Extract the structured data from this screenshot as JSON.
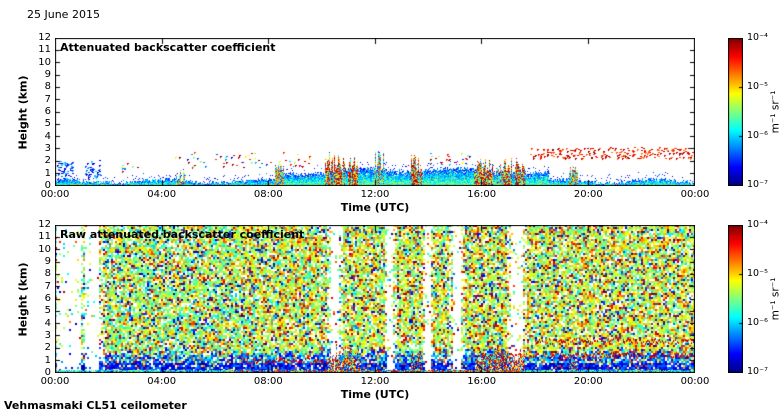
{
  "page": {
    "date_label": "25 June 2015",
    "footer_label": "Vehmasmaki CL51 ceilometer"
  },
  "chart_data": [
    {
      "type": "heatmap",
      "title": "Attenuated backscatter coefficient",
      "xlabel": "Time (UTC)",
      "ylabel": "Height (km)",
      "x_ticks": [
        "00:00",
        "04:00",
        "08:00",
        "12:00",
        "16:00",
        "20:00",
        "00:00"
      ],
      "y_ticks": [
        "0",
        "1",
        "2",
        "3",
        "4",
        "5",
        "6",
        "7",
        "8",
        "9",
        "10",
        "11",
        "12"
      ],
      "x_range_hours": [
        0,
        24
      ],
      "y_range_km": [
        0,
        12
      ],
      "background": "#ffffff",
      "colorbar": {
        "label": "m⁻¹ sr⁻¹",
        "ticks": [
          "10⁻⁴",
          "10⁻⁵",
          "10⁻⁶",
          "10⁻⁷"
        ],
        "scale": "log",
        "min": 1e-07,
        "max": 0.0001,
        "colormap": "jet"
      },
      "features": {
        "boundary_layer": {
          "description": "shallow surface aerosol layer",
          "top_km_night": 0.4,
          "top_km_day": 1.3
        },
        "plumes": [
          {
            "start_h": 4.55,
            "end_h": 4.85,
            "top_km": 1.5,
            "intensity": "moderate"
          },
          {
            "start_h": 8.25,
            "end_h": 8.55,
            "top_km": 2.0,
            "intensity": "moderate"
          },
          {
            "start_h": 10.15,
            "end_h": 10.85,
            "top_km": 2.9,
            "intensity": "strong"
          },
          {
            "start_h": 11.0,
            "end_h": 11.35,
            "top_km": 2.4,
            "intensity": "strong"
          },
          {
            "start_h": 12.0,
            "end_h": 12.3,
            "top_km": 3.4,
            "intensity": "moderate"
          },
          {
            "start_h": 13.35,
            "end_h": 13.75,
            "top_km": 2.6,
            "intensity": "strong"
          },
          {
            "start_h": 15.7,
            "end_h": 16.4,
            "top_km": 2.3,
            "intensity": "strong"
          },
          {
            "start_h": 16.6,
            "end_h": 17.6,
            "top_km": 2.4,
            "intensity": "strong"
          },
          {
            "start_h": 19.3,
            "end_h": 19.6,
            "top_km": 1.9,
            "intensity": "moderate"
          }
        ],
        "scattered_layers": [
          {
            "start_h": 0.1,
            "end_h": 0.7,
            "km": [
              0.3,
              2.0
            ],
            "density": 0.7,
            "palette": "cool"
          },
          {
            "start_h": 1.15,
            "end_h": 1.7,
            "km": [
              0.6,
              2.1
            ],
            "density": 0.6,
            "palette": "cool"
          },
          {
            "start_h": 2.3,
            "end_h": 3.2,
            "km": [
              1.2,
              2.0
            ],
            "density": 0.15,
            "palette": "mixed"
          },
          {
            "start_h": 4.5,
            "end_h": 9.6,
            "km": [
              1.5,
              2.7
            ],
            "density": 0.12,
            "palette": "mixed"
          },
          {
            "start_h": 14.0,
            "end_h": 15.6,
            "km": [
              1.7,
              2.6
            ],
            "density": 0.2,
            "palette": "mixed"
          },
          {
            "start_h": 17.8,
            "end_h": 23.9,
            "km": [
              2.2,
              3.1
            ],
            "density": 0.5,
            "palette": "warm"
          }
        ]
      }
    },
    {
      "type": "heatmap",
      "title": "Raw attenuated backscatter coefficient",
      "xlabel": "Time (UTC)",
      "ylabel": "Height (km)",
      "x_ticks": [
        "00:00",
        "04:00",
        "08:00",
        "12:00",
        "16:00",
        "20:00",
        "00:00"
      ],
      "y_ticks": [
        "0",
        "1",
        "2",
        "3",
        "4",
        "5",
        "6",
        "7",
        "8",
        "9",
        "10",
        "11",
        "12"
      ],
      "x_range_hours": [
        0,
        24
      ],
      "y_range_km": [
        0,
        12
      ],
      "background": "#ffffff",
      "colorbar": {
        "label": "m⁻¹ sr⁻¹",
        "ticks": [
          "10⁻⁴",
          "10⁻⁵",
          "10⁻⁶",
          "10⁻⁷"
        ],
        "scale": "log",
        "min": 1e-07,
        "max": 0.0001,
        "colormap": "jet"
      },
      "features": {
        "noise": {
          "description": "speckled green-yellow instrument noise over full profile",
          "white_fraction": 0.16
        },
        "surface_zone_top_km": 2.0,
        "white_columns": [
          {
            "h": 0.45,
            "w": 0.9
          },
          {
            "h": 1.35,
            "w": 0.5
          },
          {
            "h": 10.45,
            "w": 0.3
          },
          {
            "h": 12.55,
            "w": 0.2
          },
          {
            "h": 13.95,
            "w": 0.18
          },
          {
            "h": 15.05,
            "w": 0.28
          },
          {
            "h": 17.3,
            "w": 0.4
          }
        ],
        "aerosol_lines": [
          {
            "start_h": 7.0,
            "end_h": 10.4,
            "km": 1.0
          },
          {
            "start_h": 16.0,
            "end_h": 23.9,
            "km": 1.45
          },
          {
            "start_h": 18.0,
            "end_h": 23.9,
            "km": 2.6
          }
        ],
        "strong_returns": [
          {
            "start_h": 10.2,
            "end_h": 11.4,
            "top_km": 2.4
          },
          {
            "start_h": 13.35,
            "end_h": 13.75,
            "top_km": 1.8
          },
          {
            "start_h": 15.8,
            "end_h": 17.6,
            "top_km": 2.2
          },
          {
            "start_h": 19.3,
            "end_h": 19.6,
            "top_km": 1.5
          }
        ]
      }
    }
  ]
}
